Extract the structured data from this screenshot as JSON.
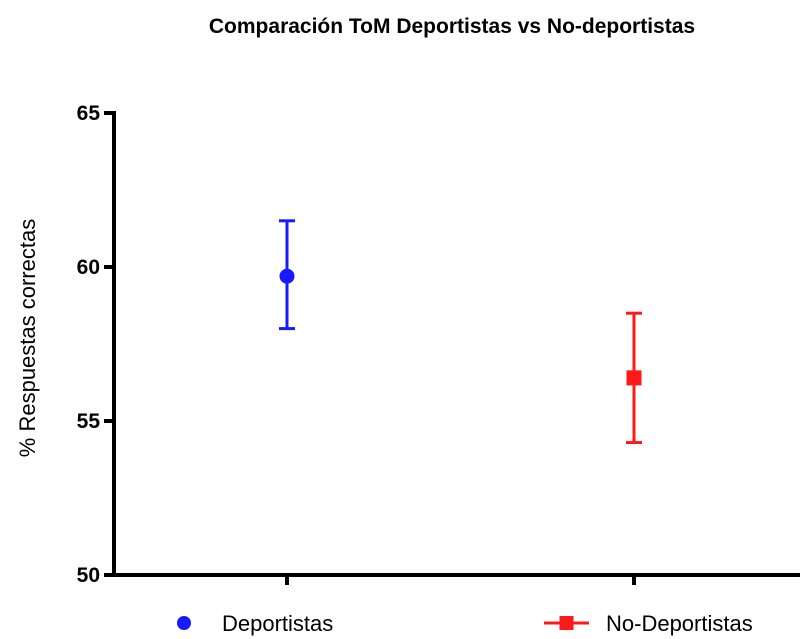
{
  "chart_data": {
    "type": "scatter",
    "title": "Comparación ToM Deportistas vs No-deportistas",
    "ylabel": "% Respuestas correctas",
    "xlabel": "",
    "ylim": [
      50,
      65
    ],
    "yticks": [
      50,
      55,
      60,
      65
    ],
    "grid": false,
    "legend_position": "bottom",
    "series": [
      {
        "name": "Deportistas",
        "marker": "circle",
        "color": "#1a1aff",
        "value": 59.7,
        "error_low": 58.0,
        "error_high": 61.5
      },
      {
        "name": "No-Deportistas",
        "marker": "square",
        "color": "#ff1a1a",
        "value": 56.4,
        "error_low": 54.3,
        "error_high": 58.5
      }
    ]
  }
}
